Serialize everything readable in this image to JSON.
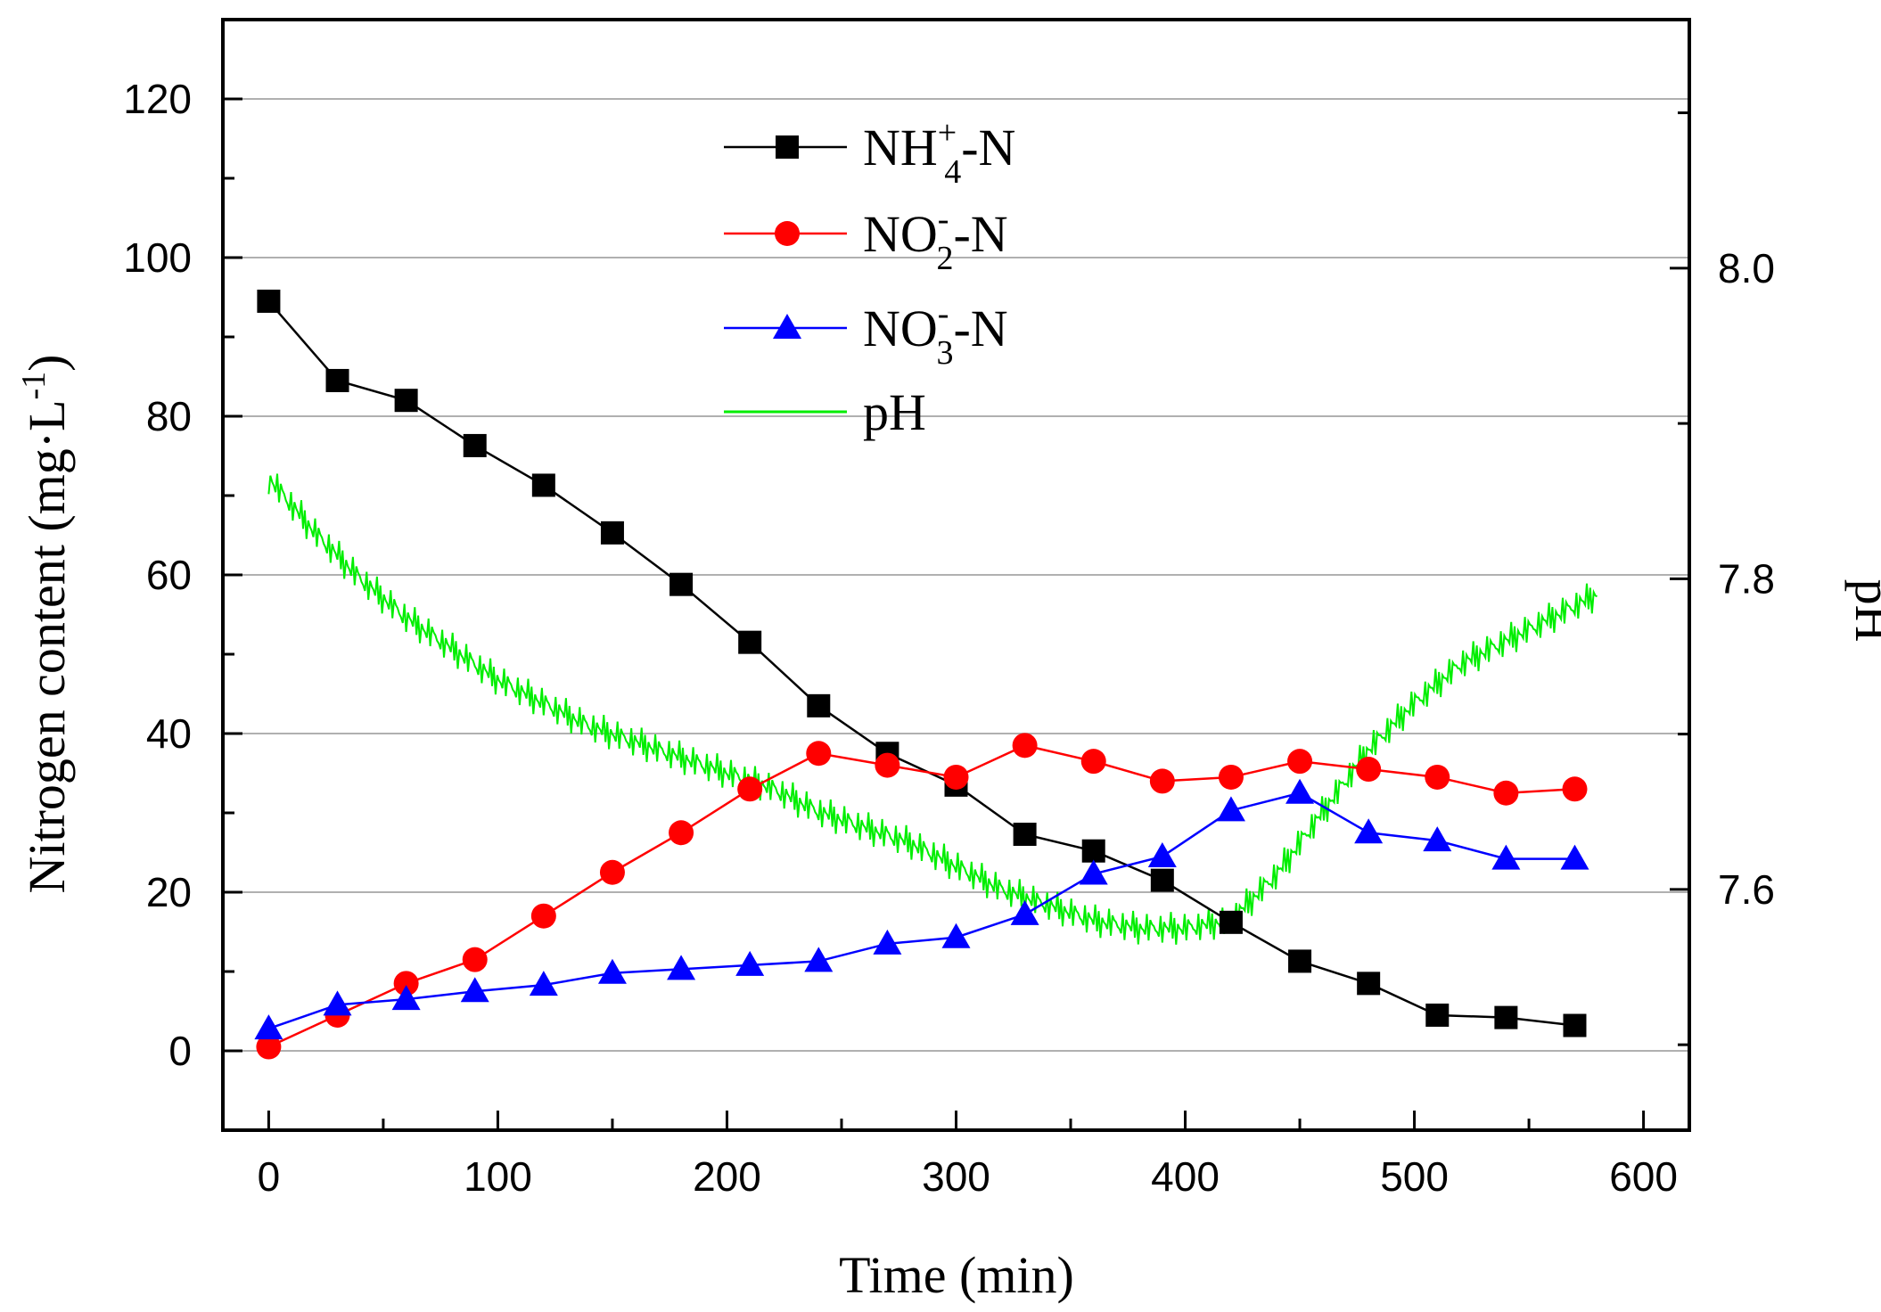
{
  "chart_data": {
    "type": "line",
    "title": "",
    "xlabel": "Time (min)",
    "ylabel": "Nitrogen content (mg·L",
    "ylabel_sup": "-1",
    "ylabel_close": ")",
    "y2label": "pH",
    "xlim": [
      -20,
      620
    ],
    "ylim": [
      -10,
      130
    ],
    "y2lim": [
      7.445,
      8.16
    ],
    "xticks": [
      0,
      100,
      200,
      300,
      400,
      500,
      600
    ],
    "yticks": [
      0,
      20,
      40,
      60,
      80,
      100,
      120
    ],
    "y2ticks": [
      7.6,
      7.8,
      8.0
    ],
    "y2tick_labels": [
      "7.6",
      "7.8",
      "8.0"
    ],
    "grid": true,
    "legend_position": "top-center",
    "x": [
      0,
      30,
      60,
      90,
      120,
      150,
      180,
      210,
      240,
      270,
      300,
      330,
      360,
      390,
      420,
      450,
      480,
      510,
      540,
      570
    ],
    "series": [
      {
        "name": "NH4+-N",
        "legend": {
          "base": "NH",
          "sub": "4",
          "sup": "+",
          "tail": "-N"
        },
        "color": "#000000",
        "marker": "square",
        "values": [
          94.5,
          84.5,
          82,
          76.3,
          71.3,
          65.3,
          58.8,
          51.5,
          43.5,
          37.5,
          33.5,
          27.3,
          25.2,
          21.5,
          16.2,
          11.3,
          8.5,
          4.5,
          4.2,
          3.2
        ]
      },
      {
        "name": "NO2--N",
        "legend": {
          "base": "NO",
          "sub": "2",
          "sup": "-",
          "tail": "-N"
        },
        "color": "#ff0000",
        "marker": "circle",
        "values": [
          0.5,
          4.5,
          8.5,
          11.5,
          17,
          22.5,
          27.5,
          33,
          37.5,
          36,
          34.5,
          38.5,
          36.5,
          34,
          34.5,
          36.5,
          35.5,
          34.5,
          32.5,
          33
        ]
      },
      {
        "name": "NO3--N",
        "legend": {
          "base": "NO",
          "sub": "3",
          "sup": "-",
          "tail": "-N"
        },
        "color": "#0000ff",
        "marker": "triangle",
        "values": [
          2.8,
          5.8,
          6.5,
          7.5,
          8.3,
          9.8,
          10.3,
          10.8,
          11.3,
          13.5,
          14.3,
          17.2,
          22.3,
          24.5,
          30.3,
          32.5,
          27.5,
          26.5,
          24.2,
          24.2
        ]
      },
      {
        "name": "pH",
        "legend": {
          "base": "pH",
          "sub": "",
          "sup": "",
          "tail": ""
        },
        "color": "#00ee00",
        "marker": "none",
        "axis": "right",
        "x": [
          0,
          20,
          40,
          60,
          80,
          100,
          120,
          140,
          160,
          180,
          200,
          220,
          240,
          260,
          280,
          300,
          320,
          340,
          360,
          380,
          400,
          420,
          440,
          460,
          480,
          500,
          520,
          540,
          560,
          580
        ],
        "values": [
          7.865,
          7.83,
          7.8,
          7.775,
          7.755,
          7.735,
          7.72,
          7.705,
          7.695,
          7.685,
          7.675,
          7.665,
          7.65,
          7.64,
          7.63,
          7.615,
          7.6,
          7.59,
          7.58,
          7.575,
          7.575,
          7.58,
          7.61,
          7.65,
          7.69,
          7.72,
          7.745,
          7.76,
          7.775,
          7.79
        ]
      }
    ]
  }
}
